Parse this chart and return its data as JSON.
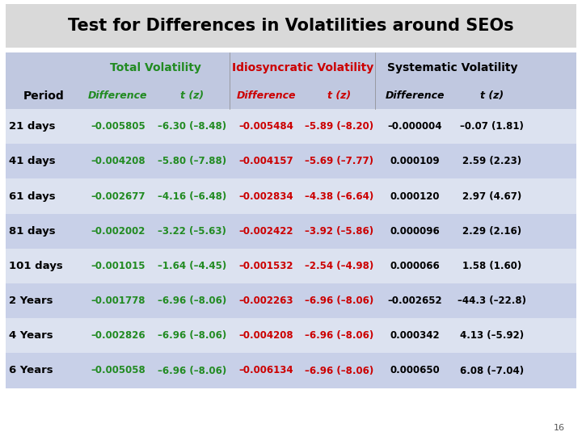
{
  "title": "Test for Differences in Volatilities around SEOs",
  "title_bg": "#d9d9d9",
  "header_bg": "#c0c8e0",
  "row_bg_light": "#dce2f0",
  "row_bg_dark": "#c8d0e8",
  "col_groups": [
    "Total Volatility",
    "Idiosyncratic Volatility",
    "Systematic Volatility"
  ],
  "col_group_colors": [
    "#228B22",
    "#cc0000",
    "#000000"
  ],
  "sub_headers": [
    "Difference",
    "t (z)",
    "Difference",
    "t (z)",
    "Difference",
    "t (z)"
  ],
  "sub_header_colors": [
    "#228B22",
    "#228B22",
    "#cc0000",
    "#cc0000",
    "#000000",
    "#000000"
  ],
  "period_label": "Period",
  "rows": [
    {
      "period": "21 days",
      "data": [
        "–0.005805",
        "–6.30 (–8.48)",
        "–0.005484",
        "–5.89 (–8.20)",
        "–0.000004",
        "–0.07 (1.81)"
      ],
      "colors": [
        "#228B22",
        "#228B22",
        "#cc0000",
        "#cc0000",
        "#000000",
        "#000000"
      ]
    },
    {
      "period": "41 days",
      "data": [
        "–0.004208",
        "–5.80 (–7.88)",
        "–0.004157",
        "–5.69 (–7.77)",
        "0.000109",
        "2.59 (2.23)"
      ],
      "colors": [
        "#228B22",
        "#228B22",
        "#cc0000",
        "#cc0000",
        "#000000",
        "#000000"
      ]
    },
    {
      "period": "61 days",
      "data": [
        "–0.002677",
        "–4.16 (–6.48)",
        "–0.002834",
        "–4.38 (–6.64)",
        "0.000120",
        "2.97 (4.67)"
      ],
      "colors": [
        "#228B22",
        "#228B22",
        "#cc0000",
        "#cc0000",
        "#000000",
        "#000000"
      ]
    },
    {
      "period": "81 days",
      "data": [
        "–0.002002",
        "–3.22 (–5.63)",
        "–0.002422",
        "–3.92 (–5.86)",
        "0.000096",
        "2.29 (2.16)"
      ],
      "colors": [
        "#228B22",
        "#228B22",
        "#cc0000",
        "#cc0000",
        "#000000",
        "#000000"
      ]
    },
    {
      "period": "101 days",
      "data": [
        "–0.001015",
        "–1.64 (–4.45)",
        "–0.001532",
        "–2.54 (–4.98)",
        "0.000066",
        "1.58 (1.60)"
      ],
      "colors": [
        "#228B22",
        "#228B22",
        "#cc0000",
        "#cc0000",
        "#000000",
        "#000000"
      ]
    },
    {
      "period": "2 Years",
      "data": [
        "–0.001778",
        "–6.96 (–8.06)",
        "–0.002263",
        "–6.96 (–8.06)",
        "–0.002652",
        "–44.3 (–22.8)"
      ],
      "colors": [
        "#228B22",
        "#228B22",
        "#cc0000",
        "#cc0000",
        "#000000",
        "#000000"
      ]
    },
    {
      "period": "4 Years",
      "data": [
        "–0.002826",
        "–6.96 (–8.06)",
        "–0.004208",
        "–6.96 (–8.06)",
        "0.000342",
        "4.13 (–5.92)"
      ],
      "colors": [
        "#228B22",
        "#228B22",
        "#cc0000",
        "#cc0000",
        "#000000",
        "#000000"
      ]
    },
    {
      "period": "6 Years",
      "data": [
        "–0.005058",
        "–6.96 (–8.06)",
        "–0.006134",
        "–6.96 (–8.06)",
        "0.000650",
        "6.08 (–7.04)"
      ],
      "colors": [
        "#228B22",
        "#228B22",
        "#cc0000",
        "#cc0000",
        "#000000",
        "#000000"
      ]
    }
  ],
  "footnote": "16"
}
